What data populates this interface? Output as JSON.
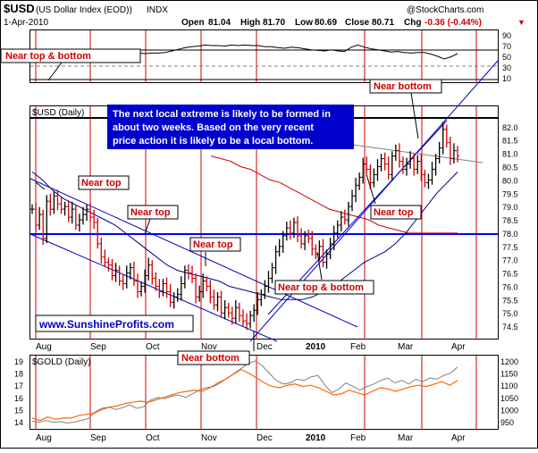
{
  "header": {
    "symbol": "$USD",
    "name": "(US Dollar Index (EOD))",
    "exchange": "INDX",
    "date": "1-Apr-2010",
    "open_label": "Open",
    "open": "81.04",
    "high_label": "High",
    "high": "81.70",
    "low_label": "Low",
    "low": "80.69",
    "close_label": "Close",
    "close": "80.71",
    "chg_label": "Chg",
    "chg": "-0.36 (-0.44%)",
    "chg_arrow": "▼",
    "brand": "@StockCharts.com"
  },
  "colors": {
    "price_up": "#000000",
    "price_down": "#cc0000",
    "trend": "#0000cc",
    "label_text": "#cc0000",
    "vline": "#cc0000",
    "gold": "#808080",
    "ratio": "#ff6600",
    "ma_red": "#cc0000",
    "ma_blue": "#000080",
    "resistance": "#0000ff"
  },
  "chart_data": [
    {
      "type": "line",
      "panel": "rsi",
      "title": "",
      "ylim": [
        0,
        100
      ],
      "y_ticks": [
        90,
        70,
        50,
        30,
        10
      ],
      "values": [
        58,
        57,
        58,
        59,
        60,
        60,
        59,
        60,
        58,
        59,
        57,
        56,
        55,
        57,
        56,
        55,
        56,
        55,
        56,
        56,
        57,
        60,
        63,
        66,
        68,
        69,
        71,
        70,
        70,
        69,
        71,
        70,
        71,
        70,
        70,
        68,
        68,
        66,
        65,
        67,
        66,
        64,
        62,
        61,
        60,
        62,
        60,
        59,
        67,
        71,
        67,
        64,
        62,
        60,
        58,
        59,
        57,
        56,
        57,
        57,
        54,
        50,
        45,
        49,
        55
      ]
    },
    {
      "type": "ohlc",
      "panel": "price",
      "title": "$USD (Daily)",
      "ylim": [
        74.0,
        82.8
      ],
      "y_ticks": [
        82.0,
        81.5,
        81.0,
        80.5,
        80.0,
        79.5,
        79.0,
        78.5,
        78.0,
        77.5,
        77.0,
        76.5,
        76.0,
        75.5,
        75.0,
        74.5
      ],
      "x_labels": [
        "Aug",
        "Sep",
        "Oct",
        "Nov",
        "Dec",
        "2010",
        "Feb",
        "Mar",
        "Apr"
      ],
      "close": [
        78.9,
        78.3,
        78.7,
        77.8,
        79.2,
        78.9,
        79.4,
        79.1,
        78.9,
        79.0,
        78.6,
        78.9,
        78.3,
        78.5,
        78.7,
        78.9,
        78.6,
        78.4,
        77.6,
        77.1,
        76.9,
        76.8,
        76.4,
        76.6,
        76.2,
        76.1,
        76.5,
        76.7,
        76.2,
        75.8,
        76.0,
        76.4,
        76.8,
        76.3,
        76.0,
        75.8,
        76.1,
        75.8,
        75.4,
        75.6,
        75.7,
        76.1,
        76.6,
        76.5,
        76.3,
        75.6,
        75.8,
        76.2,
        76.0,
        75.6,
        75.3,
        75.6,
        75.0,
        75.2,
        75.0,
        74.8,
        75.2,
        74.9,
        74.7,
        74.6,
        74.9,
        75.1,
        75.5,
        75.7,
        76.0,
        76.3,
        76.7,
        77.3,
        77.5,
        77.9,
        78.2,
        78.0,
        78.4,
        77.9,
        77.6,
        77.9,
        77.8,
        77.4,
        77.2,
        77.5,
        76.9,
        77.2,
        77.6,
        78.0,
        78.3,
        78.6,
        78.5,
        79.0,
        79.4,
        79.8,
        80.1,
        80.6,
        80.4,
        79.9,
        80.2,
        80.5,
        80.8,
        80.6,
        80.2,
        80.9,
        81.1,
        80.7,
        80.4,
        80.6,
        80.8,
        80.4,
        80.7,
        80.2,
        79.9,
        80.0,
        80.4,
        80.8,
        81.2,
        81.9,
        81.4,
        80.8,
        81.1,
        80.9
      ],
      "moving_averages": [
        {
          "color_key": "ma_blue",
          "values": [
            80.3,
            80.0,
            79.6,
            79.3,
            79.1,
            78.9,
            78.7,
            78.5,
            78.3,
            78.0,
            77.7,
            77.4,
            77.1,
            76.8,
            76.6,
            76.5,
            76.4,
            76.3,
            76.2,
            76.0,
            75.9,
            75.8,
            75.7,
            75.6,
            75.5,
            75.5,
            75.5,
            75.6,
            75.8,
            76.0,
            76.3,
            76.6,
            76.9,
            77.1,
            77.3,
            77.6,
            78.0,
            78.5,
            79.0,
            79.5,
            79.9,
            80.3
          ]
        },
        {
          "color_key": "ma_red",
          "values": [
            80.9,
            80.8,
            80.7,
            80.5,
            80.4,
            80.2,
            80.0,
            79.9,
            79.7,
            79.5,
            79.3,
            79.1,
            78.9,
            78.8,
            78.7,
            78.6,
            78.5,
            78.3,
            78.2,
            78.1,
            78.0,
            78.0,
            78.0,
            78.0,
            78.0,
            78.0
          ]
        }
      ]
    },
    {
      "type": "line",
      "panel": "gold",
      "title": "$GOLD (Daily)",
      "left_axis_ticks": [
        19,
        18,
        17,
        16,
        15,
        14
      ],
      "right_axis_ticks": [
        1200,
        1150,
        1100,
        1050,
        1000,
        950
      ],
      "series": [
        {
          "color_key": "gold",
          "values": [
            952,
            948,
            955,
            948,
            950,
            945,
            948,
            955,
            962,
            990,
            1005,
            1010,
            1000,
            1008,
            1020,
            1005,
            1012,
            1040,
            1050,
            1045,
            1055,
            1060,
            1050,
            1065,
            1080,
            1090,
            1095,
            1110,
            1130,
            1150,
            1170,
            1190,
            1200,
            1180,
            1150,
            1120,
            1105,
            1110,
            1125,
            1120,
            1135,
            1140,
            1100,
            1070,
            1085,
            1110,
            1095,
            1080,
            1095,
            1105,
            1120,
            1130,
            1110,
            1120,
            1105,
            1125,
            1115,
            1130,
            1125,
            1140,
            1150,
            1175
          ]
        },
        {
          "color_key": "ratio",
          "values": [
            14.3,
            14.1,
            14.4,
            14.2,
            14.3,
            14.3,
            14.5,
            14.6,
            14.7,
            15.0,
            15.2,
            15.3,
            15.5,
            15.6,
            15.7,
            15.6,
            15.8,
            16.0,
            16.2,
            16.4,
            16.5,
            16.6,
            16.5,
            16.8,
            17.2,
            17.5,
            17.9,
            18.3,
            18.0,
            17.6,
            17.2,
            16.9,
            16.8,
            17.0,
            17.1,
            16.9,
            17.0,
            16.8,
            16.5,
            16.2,
            16.3,
            16.6,
            16.4,
            16.2,
            16.5,
            16.8,
            16.7,
            16.5,
            16.7,
            16.9,
            17.0,
            16.9,
            17.1,
            17.3,
            17.0,
            17.4
          ]
        }
      ]
    }
  ],
  "annotations": {
    "main_text": [
      "The next local extreme is likely to be formed in",
      "about two weeks. Based on the very recent",
      "price action it is likely to be a local bottom."
    ],
    "near_top_1": "Near top",
    "near_top_2": "Near top",
    "near_top_3": "Near top",
    "near_top_4": "Near top",
    "near_top_bottom_1": "Near top & bottom",
    "near_top_bottom_2": "Near top & bottom",
    "near_bottom_1": "Near bottom",
    "near_bottom_2": "Near bottom",
    "website": "www.SunshineProfits.com"
  }
}
